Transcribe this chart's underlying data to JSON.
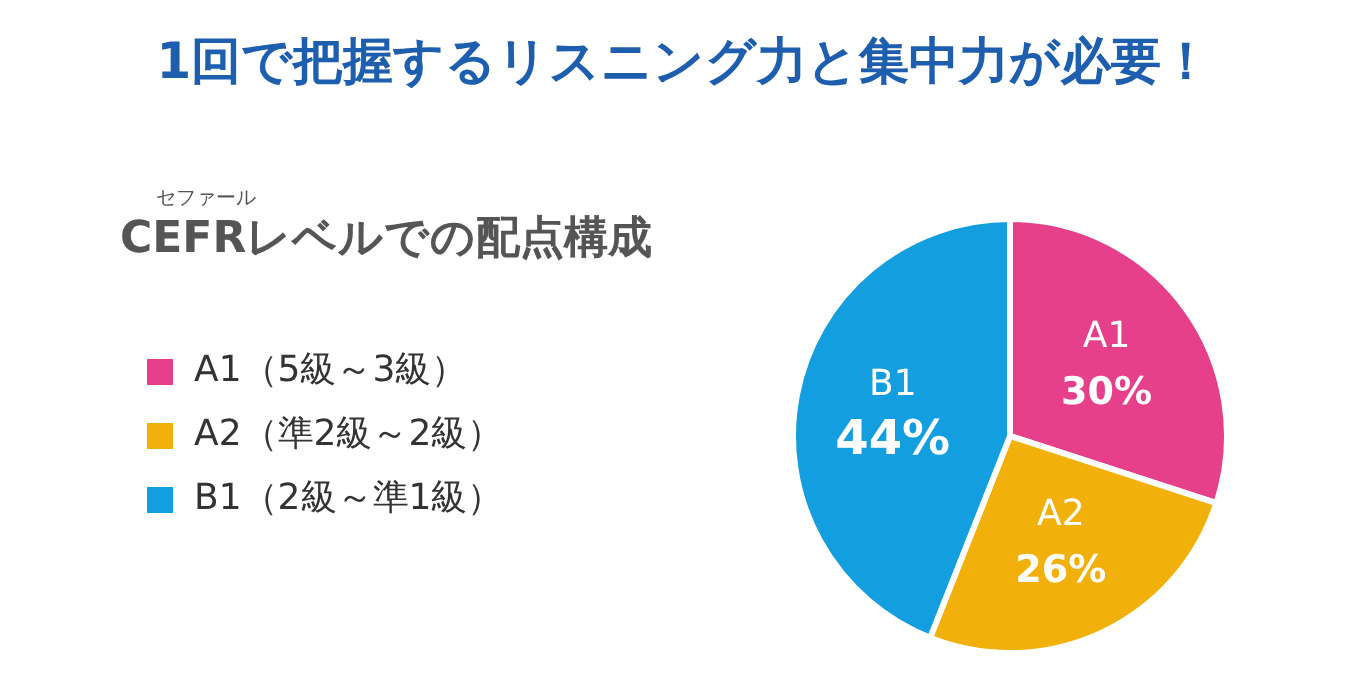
{
  "chart_data": {
    "type": "pie",
    "title": "1回で把握するリスニング力と集中力が必要！",
    "subtitle": "CEFRレベルでの配点構成",
    "annotations": [
      "セファール",
      {
        "text": "A1",
        "x": "A1（5級～3級）"
      },
      {
        "text": "A2",
        "x": "A2（準2級～2級）"
      },
      {
        "text": "B1",
        "x": "B1（2級～準1級）"
      }
    ],
    "categories": [
      "A1（5級～3級）",
      "A2（準2級～2級）",
      "B1（2級～準1級）"
    ],
    "values": [
      30,
      26,
      44
    ],
    "value_labels": [
      "30%",
      "26%",
      "44%"
    ],
    "colors": [
      "#e6408b",
      "#f2b10a",
      "#139fdf"
    ],
    "legend": "left"
  }
}
